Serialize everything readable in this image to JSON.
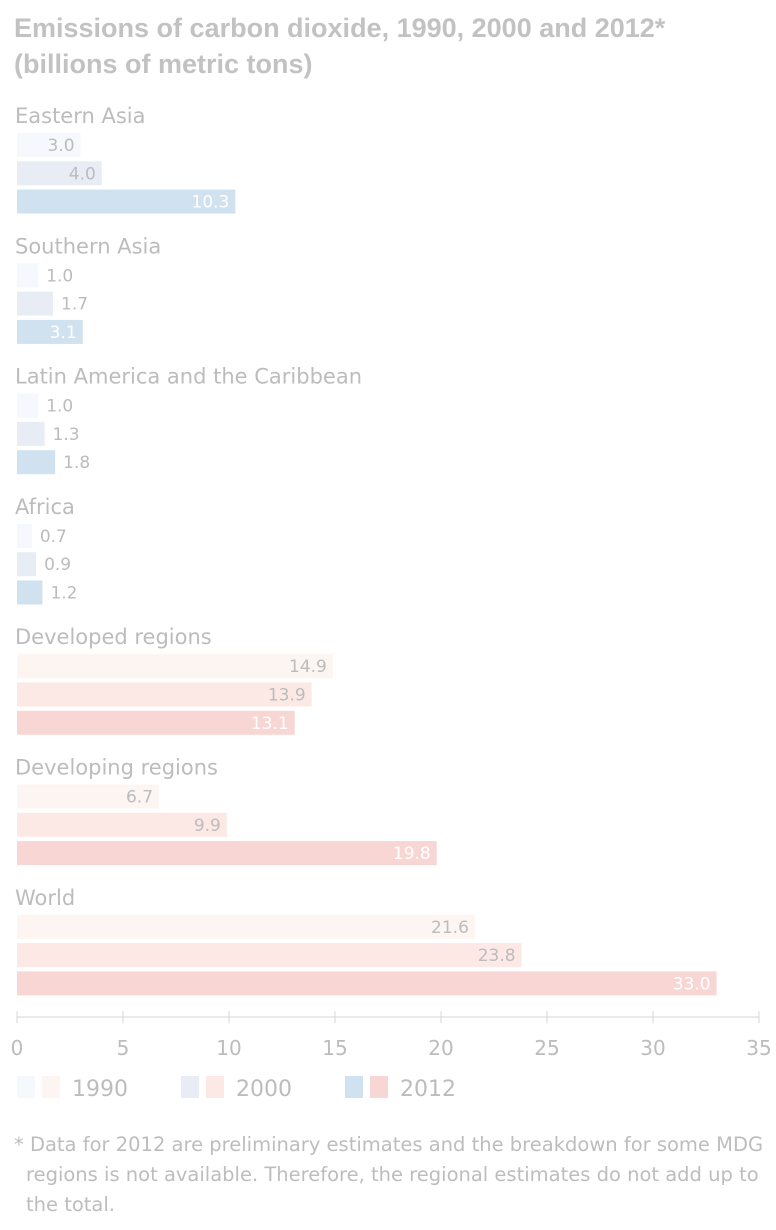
{
  "chart_data": {
    "type": "bar",
    "orientation": "horizontal",
    "title_line1": "Emissions of carbon dioxide, 1990, 2000 and 2012*",
    "title_line2": "(billions of metric tons)",
    "categories": [
      "Eastern Asia",
      "Southern Asia",
      "Latin America and the Caribbean",
      "Africa",
      "Developed regions",
      "Developing regions",
      "World"
    ],
    "series": [
      {
        "name": "1990",
        "values": [
          3.0,
          1.0,
          1.0,
          0.7,
          14.9,
          6.7,
          21.6
        ],
        "labels": [
          "3.0",
          "1.0",
          "1.0",
          "0.7",
          "14.9",
          "6.7",
          "21.6"
        ]
      },
      {
        "name": "2000",
        "values": [
          4.0,
          1.7,
          1.3,
          0.9,
          13.9,
          9.9,
          23.8
        ],
        "labels": [
          "4.0",
          "1.7",
          "1.3",
          "0.9",
          "13.9",
          "9.9",
          "23.8"
        ]
      },
      {
        "name": "2012",
        "values": [
          10.3,
          3.1,
          1.8,
          1.2,
          13.1,
          19.8,
          33.0
        ],
        "labels": [
          "10.3",
          "3.1",
          "1.8",
          "1.2",
          "13.1",
          "19.8",
          "33.0"
        ]
      }
    ],
    "color_groups": [
      "blue",
      "blue",
      "blue",
      "blue",
      "red",
      "red",
      "red"
    ],
    "colors": {
      "blue": [
        "#f5f8fc",
        "#e8ecf5",
        "#d0e1ef"
      ],
      "red": [
        "#fdf5f2",
        "#fce9e5",
        "#f8d6d4"
      ]
    },
    "xlim": [
      0,
      35
    ],
    "xticks": [
      "0",
      "5",
      "10",
      "15",
      "20",
      "25",
      "30",
      "35"
    ],
    "legend": {
      "placement": "bottom-left",
      "items": [
        "1990",
        "2000",
        "2012"
      ]
    }
  },
  "footnote": "* Data for 2012 are preliminary estimates and the breakdown for some MDG regions is not available. Therefore, the regional estimates do not add up to the total."
}
